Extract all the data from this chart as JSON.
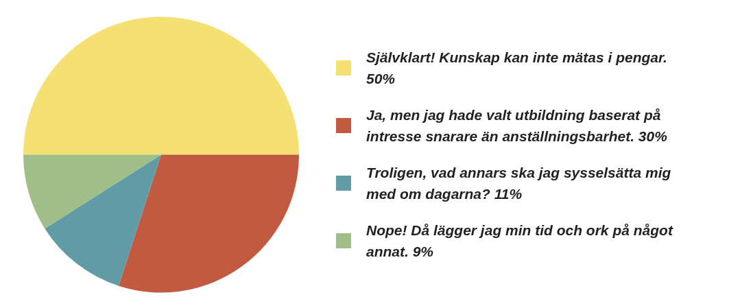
{
  "chart_data": {
    "type": "pie",
    "legend": "right",
    "categories": [
      "Självklart! Kunskap kan inte mätas i pengar. 50%",
      "Ja, men jag hade valt utbildning baserat på intresse snarare än anställningsbarhet. 30%",
      "Troligen, vad annars ska jag sysselsätta mig med om dagarna? 11%",
      "Nope! Då lägger jag min tid och ork på något annat. 9%"
    ],
    "values": [
      50,
      30,
      11,
      9
    ],
    "colors": [
      "#f5e074",
      "#c25a40",
      "#619ba6",
      "#a0bf88"
    ]
  }
}
